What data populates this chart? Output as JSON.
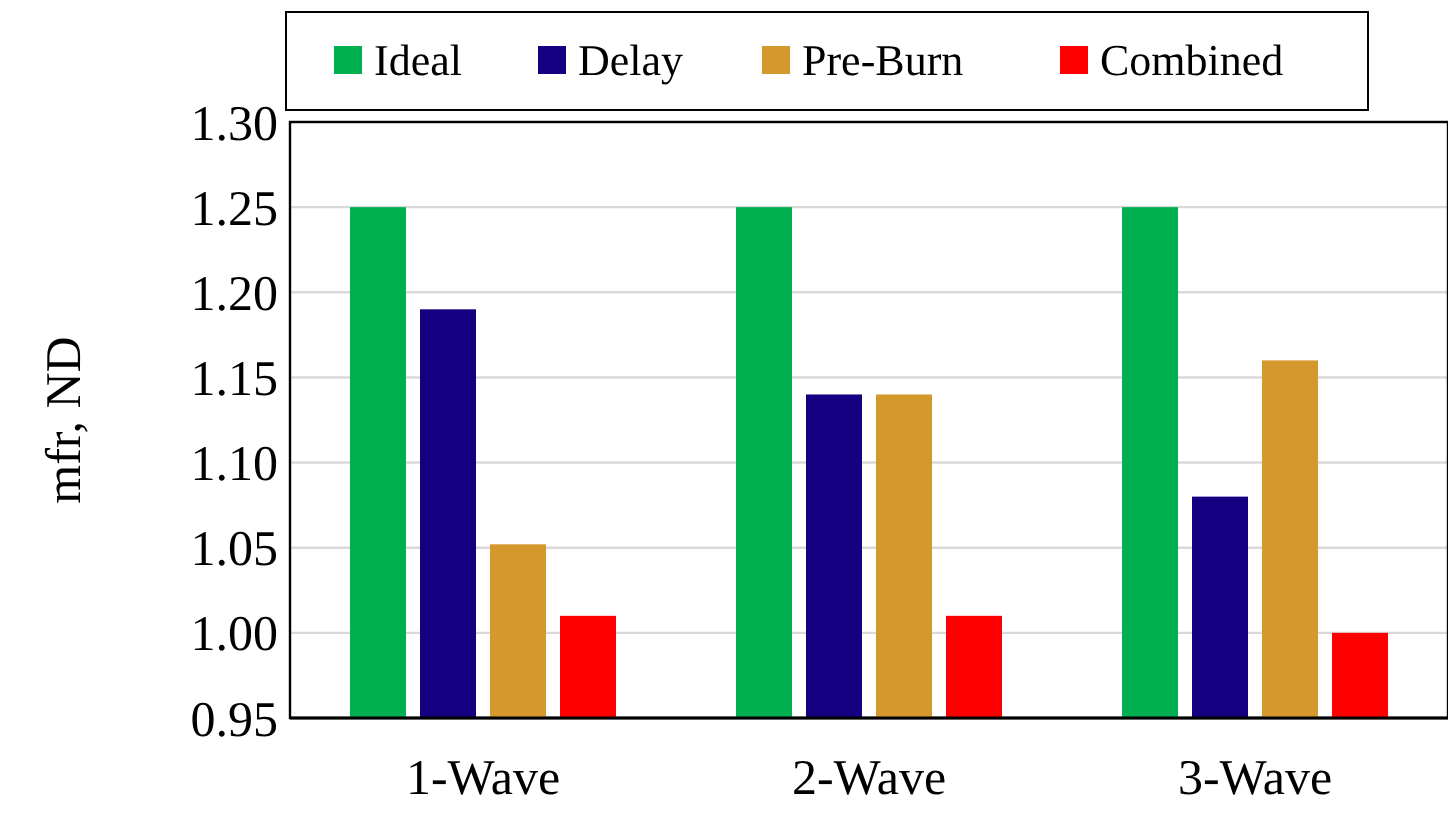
{
  "chart_data": {
    "type": "bar",
    "ylabel": "mfr, ND",
    "categories": [
      "1-Wave",
      "2-Wave",
      "3-Wave"
    ],
    "series": [
      {
        "name": "Ideal",
        "color": "#00b050",
        "values": [
          1.25,
          1.25,
          1.25
        ]
      },
      {
        "name": "Delay",
        "color": "#140080",
        "values": [
          1.19,
          1.14,
          1.08
        ]
      },
      {
        "name": "Pre-Burn",
        "color": "#d4982d",
        "values": [
          1.052,
          1.14,
          1.16
        ]
      },
      {
        "name": "Combined",
        "color": "#ff0000",
        "values": [
          1.01,
          1.01,
          1.0
        ]
      }
    ],
    "ylim": [
      0.95,
      1.3
    ],
    "yticks": [
      {
        "value": 0.95,
        "label": "0.95"
      },
      {
        "value": 1.0,
        "label": "1.00"
      },
      {
        "value": 1.05,
        "label": "1.05"
      },
      {
        "value": 1.1,
        "label": "1.10"
      },
      {
        "value": 1.15,
        "label": "1.15"
      },
      {
        "value": 1.2,
        "label": "1.20"
      },
      {
        "value": 1.25,
        "label": "1.25"
      },
      {
        "value": 1.3,
        "label": "1.30"
      }
    ],
    "grid": "y",
    "legend": "top"
  }
}
